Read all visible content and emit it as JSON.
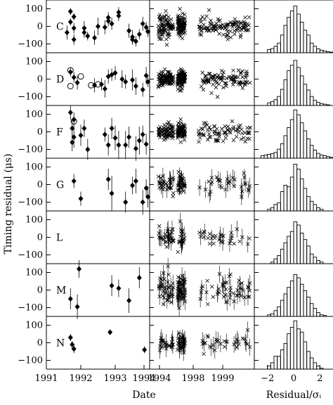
{
  "chart_data": {
    "type": "scatter",
    "title": "",
    "ylabel": "Timing residual (μs)",
    "ylim": [
      -150,
      150
    ],
    "yticks": [
      100,
      0,
      -100
    ],
    "ytick_labels": [
      "100",
      "0",
      "−100"
    ],
    "grid": false,
    "rows": [
      {
        "label": "C"
      },
      {
        "label": "D"
      },
      {
        "label": "F"
      },
      {
        "label": "G"
      },
      {
        "label": "L"
      },
      {
        "label": "M"
      },
      {
        "label": "N"
      }
    ],
    "columns": [
      {
        "id": "left",
        "xlabel": "",
        "xlim": [
          1991,
          1994
        ],
        "xticks": [
          1991,
          1992,
          1993,
          1994
        ],
        "xtick_labels": [
          "1991",
          "1992",
          "1993",
          "1994"
        ],
        "markers": [
          "filled-diamond",
          "open-circle"
        ]
      },
      {
        "id": "middle",
        "xlabel": "Date",
        "xlim": [
          1994.75,
          2000.2
        ],
        "xticks": [
          1994,
          1998,
          1999
        ],
        "xtick_labels": [
          "1994",
          "1998",
          "1999"
        ],
        "markers": [
          "cross",
          "open-circle"
        ]
      },
      {
        "id": "right",
        "xlabel": "Residual/σᵢ",
        "type": "histogram",
        "xlim": [
          -3,
          3
        ],
        "xticks": [
          -2,
          0,
          2
        ],
        "xtick_labels": [
          "−2",
          "0",
          "2"
        ]
      }
    ],
    "histograms": {
      "bin_edges": [
        -3,
        -2.75,
        -2.5,
        -2.25,
        -2,
        -1.75,
        -1.5,
        -1.25,
        -1,
        -0.75,
        -0.5,
        -0.25,
        0,
        0.25,
        0.5,
        0.75,
        1,
        1.25,
        1.5,
        1.75,
        2,
        2.25,
        2.5,
        2.75,
        3
      ],
      "C": [
        0,
        0,
        0,
        0,
        10,
        13,
        20,
        30,
        55,
        85,
        110,
        130,
        145,
        120,
        95,
        70,
        55,
        30,
        20,
        12,
        8,
        5,
        3,
        2
      ],
      "D": [
        0,
        0,
        0,
        0,
        8,
        12,
        18,
        28,
        50,
        80,
        108,
        125,
        140,
        118,
        92,
        66,
        48,
        28,
        16,
        10,
        6,
        4,
        2,
        0
      ],
      "F": [
        0,
        0,
        8,
        10,
        12,
        14,
        18,
        28,
        45,
        70,
        95,
        120,
        150,
        135,
        110,
        85,
        60,
        40,
        25,
        15,
        10,
        8,
        5,
        3
      ],
      "G": [
        0,
        0,
        0,
        0,
        5,
        10,
        20,
        25,
        60,
        80,
        75,
        105,
        145,
        130,
        100,
        70,
        45,
        30,
        20,
        10,
        5,
        0,
        0,
        0
      ],
      "L": [
        0,
        0,
        0,
        0,
        0,
        5,
        15,
        25,
        45,
        65,
        85,
        100,
        130,
        120,
        95,
        75,
        55,
        30,
        20,
        10,
        5,
        0,
        0,
        0
      ],
      "M": [
        0,
        0,
        0,
        0,
        5,
        8,
        18,
        30,
        50,
        70,
        90,
        110,
        130,
        120,
        100,
        80,
        60,
        40,
        25,
        12,
        5,
        3,
        0,
        0
      ],
      "N": [
        0,
        0,
        0,
        0,
        10,
        20,
        40,
        40,
        60,
        80,
        110,
        130,
        150,
        125,
        115,
        85,
        55,
        35,
        20,
        10,
        3,
        0,
        0,
        0
      ]
    },
    "early": {
      "C": [
        [
          1991.7,
          85,
          20
        ],
        [
          1991.8,
          55,
          20
        ],
        [
          1991.7,
          25,
          20
        ],
        [
          1991.8,
          -10,
          30
        ],
        [
          1991.6,
          -35,
          40
        ],
        [
          1991.8,
          -75,
          30
        ],
        [
          1992.1,
          -35,
          30
        ],
        [
          1992.2,
          -55,
          25
        ],
        [
          1992.4,
          -65,
          40
        ],
        [
          1992.1,
          -10,
          40
        ],
        [
          1992.5,
          0,
          50
        ],
        [
          1992.8,
          30,
          30
        ],
        [
          1992.9,
          15,
          35
        ],
        [
          1993.1,
          60,
          30
        ],
        [
          1992.7,
          -5,
          40
        ],
        [
          1992.8,
          50,
          30
        ],
        [
          1993.1,
          80,
          30
        ],
        [
          1993.4,
          -25,
          40
        ],
        [
          1993.5,
          -60,
          40
        ],
        [
          1993.6,
          -85,
          30
        ],
        [
          1993.7,
          -45,
          30
        ],
        [
          1993.8,
          15,
          40
        ],
        [
          1993.9,
          -5,
          30
        ],
        [
          1993.95,
          -30,
          30
        ],
        [
          1993.5,
          -75,
          30
        ]
      ],
      "D": [
        [
          1991.7,
          40,
          25
        ],
        [
          1991.8,
          10,
          30
        ],
        [
          1991.9,
          -20,
          40
        ],
        [
          1992.4,
          -35,
          40
        ],
        [
          1992.6,
          -30,
          35
        ],
        [
          1992.7,
          -55,
          50
        ],
        [
          1992.9,
          25,
          35
        ],
        [
          1993.0,
          35,
          40
        ],
        [
          1993.2,
          0,
          50
        ],
        [
          1993.3,
          -15,
          40
        ],
        [
          1993.5,
          -5,
          60
        ],
        [
          1993.6,
          -40,
          50
        ],
        [
          1993.8,
          -60,
          40
        ],
        [
          1993.9,
          20,
          50
        ],
        [
          1993.95,
          -15,
          30
        ],
        [
          1992.8,
          15,
          40
        ]
      ],
      "D_open": [
        [
          1991.7,
          -40
        ],
        [
          1991.7,
          50
        ],
        [
          1992.0,
          15
        ],
        [
          1992.3,
          -35
        ],
        [
          1992.5,
          -30
        ]
      ],
      "F": [
        [
          1991.7,
          110,
          40
        ],
        [
          1991.8,
          70,
          40
        ],
        [
          1991.75,
          20,
          50
        ],
        [
          1991.8,
          -30,
          60
        ],
        [
          1991.75,
          -60,
          50
        ],
        [
          1992.0,
          -20,
          60
        ],
        [
          1992.1,
          20,
          50
        ],
        [
          1992.2,
          -100,
          60
        ],
        [
          1992.7,
          -15,
          40
        ],
        [
          1992.8,
          -75,
          60
        ],
        [
          1992.9,
          20,
          60
        ],
        [
          1993.0,
          -35,
          70
        ],
        [
          1993.1,
          -75,
          80
        ],
        [
          1993.3,
          -75,
          80
        ],
        [
          1993.4,
          -30,
          60
        ],
        [
          1993.6,
          -95,
          70
        ],
        [
          1993.7,
          -50,
          80
        ],
        [
          1993.8,
          -15,
          50
        ],
        [
          1993.9,
          -70,
          60
        ]
      ],
      "F_open": [
        [
          1991.8,
          60
        ]
      ],
      "G": [
        [
          1991.8,
          20,
          40
        ],
        [
          1992.0,
          -80,
          40
        ],
        [
          1992.8,
          30,
          60
        ],
        [
          1992.9,
          -50,
          100
        ],
        [
          1993.3,
          -100,
          60
        ],
        [
          1993.5,
          -5,
          50
        ],
        [
          1993.6,
          20,
          70
        ],
        [
          1993.9,
          -20,
          50
        ],
        [
          1993.95,
          -70,
          60
        ],
        [
          1993.8,
          -100,
          70
        ]
      ],
      "L": [],
      "M": [
        [
          1991.7,
          -50,
          60
        ],
        [
          1991.9,
          -95,
          70
        ],
        [
          1991.95,
          120,
          50
        ],
        [
          1992.9,
          25,
          60
        ],
        [
          1993.1,
          10,
          50
        ],
        [
          1993.4,
          -60,
          70
        ],
        [
          1993.7,
          70,
          60
        ]
      ],
      "N": [
        [
          1991.7,
          30,
          20
        ],
        [
          1991.75,
          -10,
          20
        ],
        [
          1991.8,
          -35,
          25
        ],
        [
          1992.85,
          60,
          15
        ],
        [
          1993.85,
          -40,
          20
        ]
      ]
    }
  }
}
